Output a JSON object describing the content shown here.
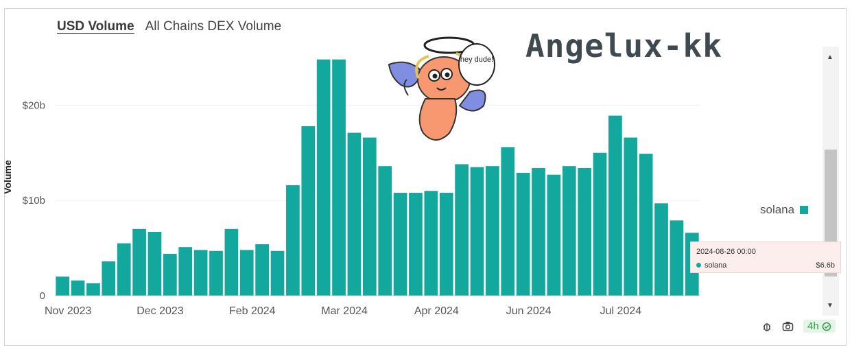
{
  "header": {
    "tab_active": "USD Volume",
    "tab_inactive": "All Chains DEX Volume"
  },
  "watermark": "Angelux-kk",
  "sticker": {
    "speech": "hey dude!"
  },
  "legend": {
    "label": "solana",
    "color": "#13a89e"
  },
  "tooltip": {
    "date": "2024-08-26 00:00",
    "series": "solana",
    "value": "$6.6b"
  },
  "footer": {
    "interval": "4h",
    "icons": [
      "bug-icon",
      "camera-icon",
      "check-circle-icon"
    ]
  },
  "colors": {
    "bar": "#13a89e",
    "grid": "#eeeeee"
  },
  "chart_data": {
    "type": "bar",
    "ylabel": "Volume",
    "xlabel": "",
    "ylim": [
      0,
      26
    ],
    "yticks": [
      {
        "v": 0,
        "label": "0"
      },
      {
        "v": 10,
        "label": "$10b"
      },
      {
        "v": 20,
        "label": "$20b"
      }
    ],
    "xticks": [
      {
        "i": 0,
        "label": "Nov 2023"
      },
      {
        "i": 6,
        "label": "Dec 2023"
      },
      {
        "i": 12,
        "label": "Feb 2024"
      },
      {
        "i": 18,
        "label": "Mar 2024"
      },
      {
        "i": 24,
        "label": "Apr 2024"
      },
      {
        "i": 30,
        "label": "Jun 2024"
      },
      {
        "i": 36,
        "label": "Jul 2024"
      }
    ],
    "series": [
      {
        "name": "solana",
        "unit": "$b",
        "values": [
          2.0,
          1.6,
          1.3,
          3.6,
          5.5,
          7.0,
          6.7,
          4.4,
          5.1,
          4.8,
          4.7,
          7.0,
          4.8,
          5.4,
          4.7,
          11.6,
          17.8,
          24.8,
          24.8,
          17.1,
          16.6,
          13.6,
          10.8,
          10.8,
          11.0,
          10.8,
          13.8,
          13.5,
          13.6,
          15.6,
          12.9,
          13.4,
          12.7,
          13.6,
          13.4,
          15.0,
          18.9,
          16.6,
          14.9,
          9.7,
          7.9,
          6.6
        ]
      }
    ]
  }
}
